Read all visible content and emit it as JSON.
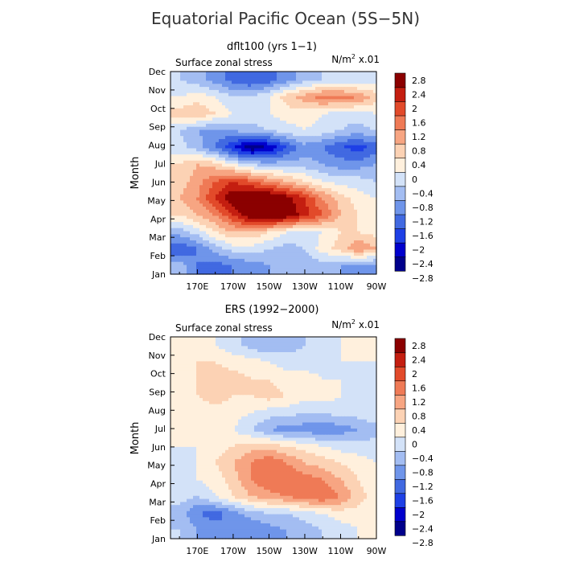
{
  "figure": {
    "title": "Equatorial Pacific Ocean (5S−5N)"
  },
  "colorbar_colors": [
    "#00008b",
    "#0000cd",
    "#1e40e6",
    "#4169e1",
    "#6f95ea",
    "#a3bdf2",
    "#d3e2f8",
    "#fff0dd",
    "#fcd2b4",
    "#f7a582",
    "#ef7a56",
    "#e24a2a",
    "#c41e10",
    "#8b0000"
  ],
  "chart_data": [
    {
      "type": "heatmap",
      "title": "dflt100 (yrs 1−1)",
      "subtitle_left": "Surface zonal stress",
      "subtitle_right": "N/m² x.01",
      "ylabel": "Month",
      "xlabel": "",
      "x_ticks": [
        "170E",
        "170W",
        "150W",
        "130W",
        "110W",
        "90W"
      ],
      "y_ticks": [
        "Jan",
        "Feb",
        "Mar",
        "Apr",
        "May",
        "Jun",
        "Jul",
        "Aug",
        "Sep",
        "Oct",
        "Nov",
        "Dec"
      ],
      "colorbar_labels": [
        "2.8",
        "2.4",
        "2",
        "1.6",
        "1.2",
        "0.8",
        "0.4",
        "0",
        "−0.4",
        "−0.8",
        "−1.2",
        "−1.6",
        "−2",
        "−2.4",
        "−2.8"
      ],
      "longitudes": [
        160,
        170,
        180,
        190,
        200,
        210,
        220,
        230,
        240,
        250,
        260,
        270
      ],
      "months": [
        "Jan",
        "Feb",
        "Mar",
        "Apr",
        "May",
        "Jun",
        "Jul",
        "Aug",
        "Sep",
        "Oct",
        "Nov",
        "Dec"
      ],
      "values": [
        [
          -0.6,
          -1.2,
          -1.4,
          -1.2,
          -1.0,
          -0.8,
          -0.8,
          -0.6,
          -0.6,
          -0.8,
          -1.0,
          -1.0
        ],
        [
          -1.6,
          -1.2,
          -0.6,
          -0.2,
          -0.2,
          -0.4,
          -0.6,
          -0.4,
          0.2,
          0.6,
          1.2,
          0.8
        ],
        [
          -0.6,
          -0.2,
          0.4,
          0.8,
          0.8,
          0.4,
          0.0,
          -0.2,
          0.0,
          0.4,
          0.4,
          0.2
        ],
        [
          0.4,
          0.8,
          1.2,
          2.0,
          2.8,
          3.2,
          2.8,
          2.2,
          1.6,
          0.8,
          0.4,
          0.2
        ],
        [
          0.8,
          1.2,
          2.0,
          2.8,
          3.0,
          3.0,
          2.6,
          2.0,
          1.2,
          0.6,
          0.2,
          0.0
        ],
        [
          0.6,
          1.0,
          1.6,
          2.0,
          1.6,
          1.2,
          0.8,
          0.4,
          0.0,
          -0.2,
          -0.2,
          -0.4
        ],
        [
          0.4,
          0.8,
          0.6,
          0.0,
          -0.4,
          -0.6,
          -0.6,
          -0.6,
          -0.8,
          -1.0,
          -1.0,
          -0.8
        ],
        [
          -0.2,
          -0.6,
          -1.2,
          -2.0,
          -2.8,
          -2.4,
          -1.6,
          -1.0,
          -1.2,
          -1.6,
          -1.8,
          -1.4
        ],
        [
          -0.4,
          -0.8,
          -1.0,
          -0.8,
          -0.6,
          -0.4,
          -0.2,
          0.0,
          -0.2,
          -0.4,
          -0.6,
          -0.4
        ],
        [
          0.6,
          0.8,
          0.4,
          0.0,
          -0.2,
          0.0,
          0.2,
          0.2,
          0.0,
          -0.2,
          -0.2,
          0.0
        ],
        [
          0.0,
          0.2,
          0.0,
          -0.4,
          -0.4,
          0.0,
          0.6,
          1.0,
          1.4,
          1.4,
          1.2,
          0.6
        ],
        [
          -0.4,
          -0.6,
          -1.0,
          -1.4,
          -1.6,
          -1.4,
          -1.0,
          -0.6,
          -0.4,
          -0.4,
          -0.4,
          -0.2
        ]
      ]
    },
    {
      "type": "heatmap",
      "title": "ERS (1992−2000)",
      "subtitle_left": "Surface zonal stress",
      "subtitle_right": "N/m² x.01",
      "ylabel": "Month",
      "xlabel": "",
      "x_ticks": [
        "170E",
        "170W",
        "150W",
        "130W",
        "110W",
        "90W"
      ],
      "y_ticks": [
        "Jan",
        "Feb",
        "Mar",
        "Apr",
        "May",
        "Jun",
        "Jul",
        "Aug",
        "Sep",
        "Oct",
        "Nov",
        "Dec"
      ],
      "colorbar_labels": [
        "2.8",
        "2.4",
        "2",
        "1.6",
        "1.2",
        "0.8",
        "0.4",
        "0",
        "−0.4",
        "−0.8",
        "−1.2",
        "−1.6",
        "−2",
        "−2.4",
        "−2.8"
      ],
      "longitudes": [
        160,
        170,
        180,
        190,
        200,
        210,
        220,
        230,
        240,
        250,
        260,
        270
      ],
      "months": [
        "Jan",
        "Feb",
        "Mar",
        "Apr",
        "May",
        "Jun",
        "Jul",
        "Aug",
        "Sep",
        "Oct",
        "Nov",
        "Dec"
      ],
      "values": [
        [
          -0.4,
          -0.8,
          -1.0,
          -1.2,
          -1.2,
          -1.0,
          -0.8,
          -0.6,
          -0.4,
          -0.2,
          0.0,
          0.0
        ],
        [
          -0.6,
          -1.2,
          -1.4,
          -1.0,
          -0.6,
          -0.4,
          -0.4,
          -0.2,
          0.0,
          0.2,
          0.2,
          0.0
        ],
        [
          -0.2,
          -0.4,
          0.0,
          0.4,
          0.8,
          1.0,
          1.2,
          1.4,
          1.6,
          1.2,
          0.6,
          0.2
        ],
        [
          -0.2,
          0.0,
          0.2,
          0.6,
          1.2,
          1.6,
          1.6,
          1.4,
          1.2,
          0.8,
          0.4,
          0.0
        ],
        [
          -0.2,
          0.0,
          0.4,
          0.8,
          1.2,
          1.6,
          1.2,
          0.8,
          0.6,
          0.4,
          0.2,
          0.0
        ],
        [
          0.0,
          0.0,
          0.2,
          0.4,
          0.6,
          0.6,
          0.4,
          0.2,
          0.0,
          -0.2,
          -0.2,
          -0.2
        ],
        [
          0.0,
          0.2,
          0.2,
          0.0,
          -0.4,
          -0.8,
          -1.0,
          -1.0,
          -1.2,
          -1.0,
          -0.8,
          -0.6
        ],
        [
          0.2,
          0.2,
          0.2,
          0.2,
          0.0,
          -0.2,
          -0.2,
          -0.4,
          -0.4,
          -0.2,
          -0.2,
          0.0
        ],
        [
          0.4,
          0.4,
          0.6,
          0.4,
          0.4,
          0.6,
          0.4,
          0.2,
          0.2,
          0.0,
          0.0,
          0.0
        ],
        [
          0.2,
          0.4,
          0.6,
          0.6,
          0.4,
          0.4,
          0.2,
          0.2,
          0.0,
          0.0,
          -0.2,
          0.0
        ],
        [
          0.2,
          0.4,
          0.4,
          0.2,
          0.2,
          0.0,
          -0.2,
          -0.2,
          -0.2,
          0.0,
          0.0,
          0.0
        ],
        [
          0.2,
          0.2,
          0.0,
          -0.2,
          -0.6,
          -0.8,
          -0.6,
          -0.4,
          -0.2,
          0.0,
          0.0,
          0.0
        ]
      ]
    }
  ]
}
